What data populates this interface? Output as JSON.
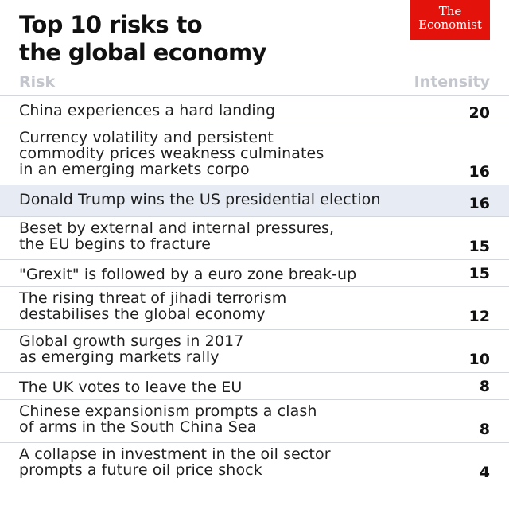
{
  "header": {
    "title_line1": "Top 10 risks to",
    "title_line2": "the global economy",
    "logo_line1": "The",
    "logo_line2": "Economist"
  },
  "colors": {
    "logo_red": "#e3120b",
    "highlight_row": "#e7ebf3",
    "column_header": "#c3c6cc",
    "rule": "#d3d6db"
  },
  "chart_data": {
    "type": "table",
    "columns": [
      "Risk",
      "Intensity"
    ],
    "highlighted_row": 2,
    "rows": [
      {
        "risk": "China experiences a hard landing",
        "lines": [
          "China experiences a hard landing"
        ],
        "intensity": 20
      },
      {
        "risk": "Currency volatility and persistent commodity prices weakness culminates in an emerging markets corpo",
        "lines": [
          "Currency volatility and persistent",
          "commodity prices weakness culminates",
          "in an emerging markets corpo"
        ],
        "intensity": 16
      },
      {
        "risk": "Donald Trump wins the US presidential election",
        "lines": [
          "Donald Trump wins the US presidential election"
        ],
        "intensity": 16
      },
      {
        "risk": "Beset by external and internal pressures, the EU begins to fracture",
        "lines": [
          "Beset by external and internal pressures,",
          "the EU begins to fracture"
        ],
        "intensity": 15
      },
      {
        "risk": "\"Grexit\" is followed by a euro zone break-up",
        "lines": [
          "\"Grexit\" is followed by a euro zone break-up"
        ],
        "intensity": 15
      },
      {
        "risk": "The rising threat of jihadi terrorism destabilises the global economy",
        "lines": [
          "The rising threat of jihadi terrorism",
          "destabilises the global economy"
        ],
        "intensity": 12
      },
      {
        "risk": "Global growth surges in 2017 as emerging markets rally",
        "lines": [
          "Global growth surges in 2017",
          "as emerging markets rally"
        ],
        "intensity": 10
      },
      {
        "risk": "The UK votes to leave the EU",
        "lines": [
          "The UK votes to leave the EU"
        ],
        "intensity": 8
      },
      {
        "risk": "Chinese expansionism prompts a clash of arms in the South China Sea",
        "lines": [
          "Chinese expansionism prompts a clash",
          "of arms in the South China Sea"
        ],
        "intensity": 8
      },
      {
        "risk": "A collapse in investment in the oil sector prompts a future oil price shock",
        "lines": [
          "A collapse in investment in the oil sector",
          "prompts a future oil price shock"
        ],
        "intensity": 4
      }
    ]
  }
}
